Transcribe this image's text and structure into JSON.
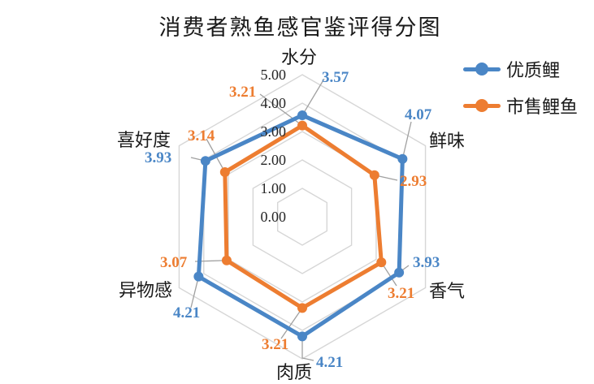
{
  "title": "消费者熟鱼感官鉴评得分图",
  "legend": [
    {
      "label": "优质鲤",
      "color": "#4A86C6"
    },
    {
      "label": "市售鲤鱼",
      "color": "#ED7D31"
    }
  ],
  "chart_data": {
    "type": "radar",
    "title": "消费者熟鱼感官鉴评得分图",
    "categories": [
      "水分",
      "鲜味",
      "香气",
      "肉质",
      "异物感",
      "喜好度"
    ],
    "series": [
      {
        "name": "优质鲤",
        "color": "#4A86C6",
        "values": [
          3.57,
          4.07,
          3.93,
          4.21,
          4.21,
          3.93
        ]
      },
      {
        "name": "市售鲤鱼",
        "color": "#ED7D31",
        "values": [
          3.21,
          2.93,
          3.21,
          3.21,
          3.07,
          3.14
        ]
      }
    ],
    "radial_axis": {
      "min": 0,
      "max": 5,
      "step": 1,
      "tick_labels": [
        "0.00",
        "1.00",
        "2.00",
        "3.00",
        "4.00",
        "5.00"
      ]
    },
    "data_labels_visible": true,
    "grid": true,
    "gridline_color": "#D6D6D6",
    "leader_line_color": "#A0A0A0",
    "text_color": "#262626",
    "legend_position": "right"
  }
}
